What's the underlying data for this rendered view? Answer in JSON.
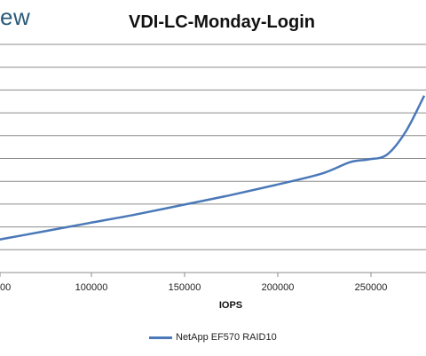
{
  "brand": {
    "text": "ew"
  },
  "chart_data": {
    "type": "line",
    "title": "VDI-LC-Monday-Login",
    "xlabel": "IOPS",
    "ylabel": "",
    "xlim": [
      50000,
      280000
    ],
    "x_ticks": [
      "00",
      "100000",
      "150000",
      "200000",
      "250000"
    ],
    "grid": true,
    "legend_position": "bottom",
    "series": [
      {
        "name": "NetApp EF570 RAID10",
        "color": "#4a78b8",
        "x": [
          50000,
          75000,
          100000,
          125000,
          150000,
          175000,
          200000,
          225000,
          240000,
          250000,
          260000,
          270000,
          280000
        ],
        "y": [
          1.7,
          2.15,
          2.6,
          3.05,
          3.55,
          4.05,
          4.6,
          5.2,
          5.8,
          5.95,
          6.2,
          7.4,
          9.3
        ]
      }
    ],
    "ylim": [
      0,
      12
    ]
  }
}
